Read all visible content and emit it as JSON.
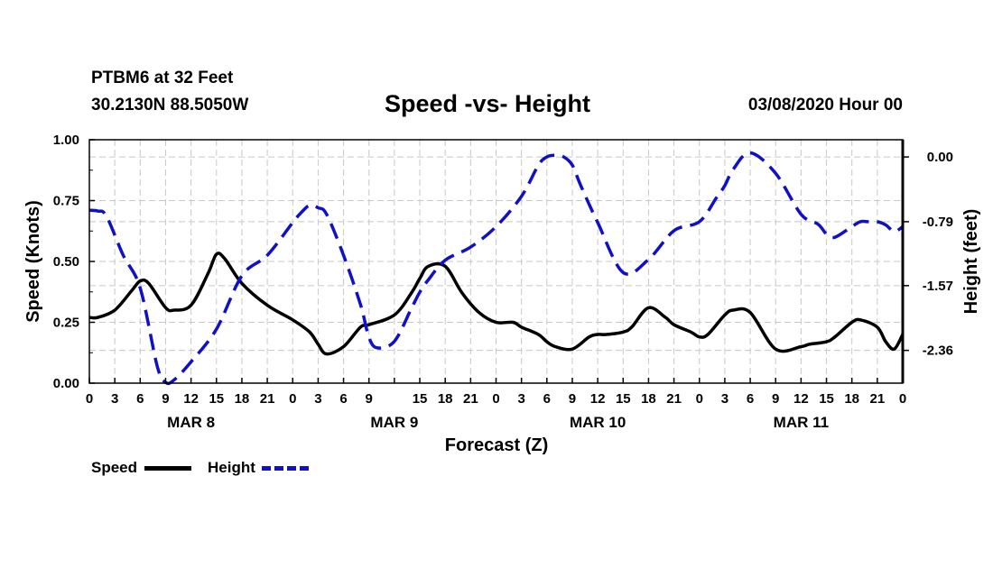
{
  "header": {
    "station": "PTBM6 at 32 Feet",
    "coords": "30.2130N 88.5050W",
    "title": "Speed -vs- Height",
    "datetime": "03/08/2020 Hour 00"
  },
  "chart_data": {
    "type": "line",
    "title": "Speed -vs- Height",
    "xlabel": "Forecast (Z)",
    "ylabel": "Speed (Knots)",
    "y2label": "Height (feet)",
    "xlim": [
      0,
      96
    ],
    "ylim": [
      0,
      1.0
    ],
    "y2lim": [
      -2.76,
      0.21
    ],
    "grid": true,
    "x_tick_labels": [
      "0",
      "3",
      "6",
      "9",
      "12",
      "15",
      "18",
      "21",
      "0",
      "3",
      "6",
      "9",
      "15",
      "18",
      "21",
      "0",
      "3",
      "6",
      "9",
      "12",
      "15",
      "18",
      "21",
      "0",
      "3",
      "6",
      "9",
      "12",
      "15",
      "18",
      "21",
      "0"
    ],
    "x_tick_hours": [
      0,
      3,
      6,
      9,
      12,
      15,
      18,
      21,
      24,
      27,
      30,
      33,
      39,
      42,
      45,
      48,
      51,
      54,
      57,
      60,
      63,
      66,
      69,
      72,
      75,
      78,
      81,
      84,
      87,
      90,
      93,
      96
    ],
    "day_labels": [
      {
        "label": "MAR 8",
        "hour": 12
      },
      {
        "label": "MAR 9",
        "hour": 36
      },
      {
        "label": "MAR 10",
        "hour": 60
      },
      {
        "label": "MAR 11",
        "hour": 84
      }
    ],
    "y_tick_labels": [
      "0.00",
      "0.25",
      "0.50",
      "0.75",
      "1.00"
    ],
    "y_tick_values": [
      0,
      0.25,
      0.5,
      0.75,
      1.0
    ],
    "y2_tick_labels": [
      "-2.36",
      "-1.57",
      "-0.79",
      "0.00"
    ],
    "y2_tick_values": [
      -2.36,
      -1.57,
      -0.79,
      0.0
    ],
    "series": [
      {
        "name": "Speed",
        "axis": "left",
        "color": "#000000",
        "style": "solid",
        "x": [
          0,
          1,
          3,
          5,
          6,
          7,
          9,
          10,
          12,
          14,
          15,
          16,
          18,
          21,
          24,
          26,
          27,
          28,
          30,
          32,
          33,
          36,
          38,
          39,
          40,
          42,
          44,
          46,
          48,
          50,
          51,
          53,
          54,
          55,
          57,
          59,
          60,
          61,
          63,
          64,
          66,
          68,
          69,
          71,
          72,
          73,
          75,
          76,
          78,
          81,
          84,
          85,
          87,
          88,
          90,
          91,
          93,
          94,
          95,
          96
        ],
        "y": [
          0.27,
          0.27,
          0.3,
          0.38,
          0.42,
          0.41,
          0.31,
          0.3,
          0.32,
          0.45,
          0.53,
          0.51,
          0.41,
          0.32,
          0.26,
          0.21,
          0.16,
          0.12,
          0.15,
          0.23,
          0.24,
          0.28,
          0.37,
          0.43,
          0.48,
          0.48,
          0.37,
          0.29,
          0.25,
          0.25,
          0.23,
          0.2,
          0.17,
          0.15,
          0.14,
          0.19,
          0.2,
          0.2,
          0.21,
          0.23,
          0.31,
          0.27,
          0.24,
          0.21,
          0.19,
          0.2,
          0.28,
          0.3,
          0.29,
          0.14,
          0.15,
          0.16,
          0.17,
          0.19,
          0.25,
          0.26,
          0.23,
          0.17,
          0.14,
          0.2
        ]
      },
      {
        "name": "Height",
        "axis": "right",
        "color": "#1010c8",
        "style": "dashed",
        "x": [
          0,
          1,
          2,
          4,
          6,
          8,
          9,
          10,
          12,
          15,
          18,
          21,
          24,
          25,
          26,
          27,
          28,
          30,
          32,
          33,
          34,
          36,
          38,
          39,
          40,
          42,
          45,
          48,
          51,
          53,
          54,
          55,
          56,
          57,
          58,
          60,
          63,
          66,
          69,
          72,
          74,
          75,
          76,
          78,
          81,
          84,
          86,
          87,
          88,
          90,
          91,
          92,
          93,
          94,
          95,
          96
        ],
        "y": [
          -0.65,
          -0.66,
          -0.72,
          -1.2,
          -1.6,
          -2.55,
          -2.75,
          -2.72,
          -2.5,
          -2.1,
          -1.45,
          -1.2,
          -0.8,
          -0.68,
          -0.59,
          -0.62,
          -0.7,
          -1.2,
          -1.8,
          -2.2,
          -2.33,
          -2.25,
          -1.85,
          -1.65,
          -1.5,
          -1.26,
          -1.1,
          -0.85,
          -0.48,
          -0.1,
          0.0,
          0.02,
          0.0,
          -0.1,
          -0.35,
          -0.8,
          -1.41,
          -1.25,
          -0.9,
          -0.79,
          -0.5,
          -0.35,
          -0.15,
          0.05,
          -0.2,
          -0.7,
          -0.82,
          -0.94,
          -0.98,
          -0.85,
          -0.79,
          -0.79,
          -0.79,
          -0.83,
          -0.91,
          -0.85
        ]
      }
    ],
    "legend": [
      "Speed",
      "Height"
    ],
    "legend_position": "bottom-left"
  }
}
